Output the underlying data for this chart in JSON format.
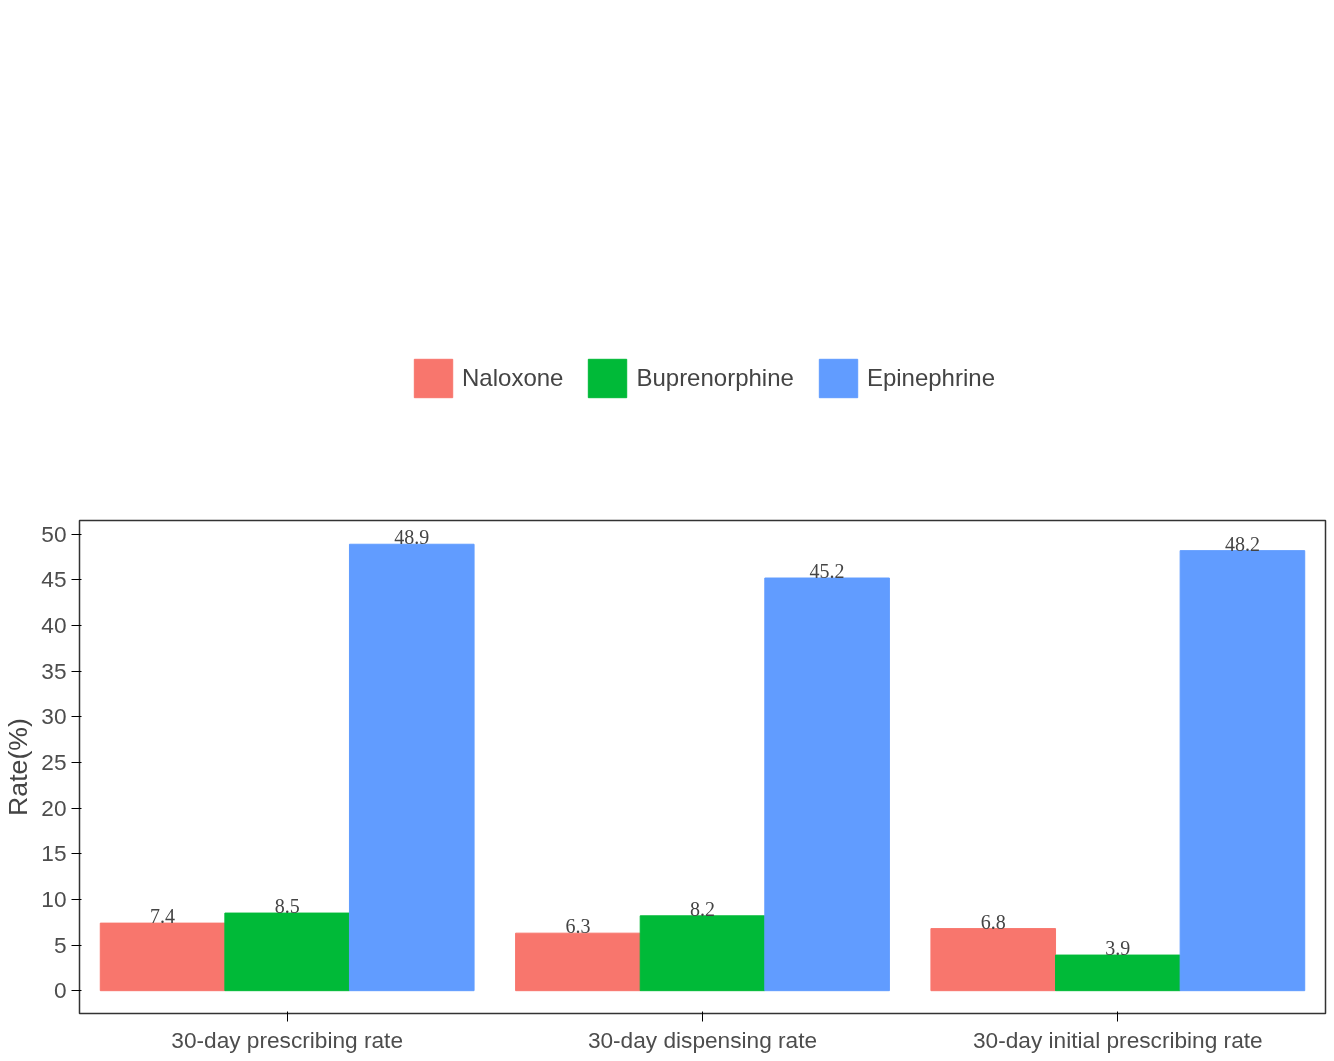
{
  "chart_data": {
    "type": "bar",
    "ylabel": "Rate(%)",
    "categories": [
      "30-day prescribing rate",
      "30-day dispensing rate",
      "30-day initial prescribing rate"
    ],
    "series": [
      {
        "name": "Naloxone",
        "color": "#f8766d",
        "values": [
          7.4,
          6.3,
          6.8
        ]
      },
      {
        "name": "Buprenorphine",
        "color": "#00ba38",
        "values": [
          8.5,
          8.2,
          3.9
        ]
      },
      {
        "name": "Epinephrine",
        "color": "#619cff",
        "values": [
          48.9,
          45.2,
          48.2
        ]
      }
    ],
    "ylim": [
      -2.5,
      51.5
    ],
    "yticks": [
      0,
      5,
      10,
      15,
      20,
      25,
      30,
      35,
      40,
      45,
      50
    ],
    "data_labels": true,
    "grid": false,
    "legend": "top"
  }
}
